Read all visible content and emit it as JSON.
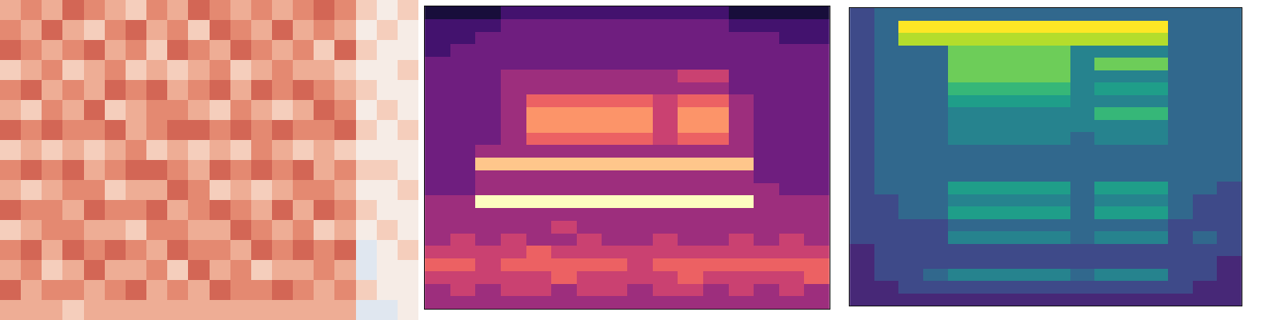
{
  "chart_data": [
    {
      "type": "heatmap",
      "color": "coolwarm",
      "zlim": [
        0,
        9
      ],
      "tick_labels": false,
      "cells": [
        [
          6,
          7,
          6,
          8,
          7,
          6,
          5,
          7,
          6,
          8,
          7,
          6,
          7,
          6,
          7,
          8,
          7,
          5,
          4,
          5
        ],
        [
          7,
          6,
          8,
          6,
          5,
          7,
          8,
          6,
          7,
          5,
          8,
          7,
          6,
          8,
          6,
          7,
          6,
          4,
          5,
          4
        ],
        [
          8,
          7,
          6,
          7,
          8,
          6,
          7,
          5,
          8,
          7,
          6,
          8,
          7,
          6,
          7,
          5,
          8,
          5,
          4,
          4
        ],
        [
          5,
          6,
          7,
          5,
          6,
          7,
          5,
          6,
          5,
          6,
          7,
          5,
          6,
          7,
          6,
          6,
          5,
          4,
          4,
          5
        ],
        [
          7,
          8,
          6,
          7,
          6,
          8,
          7,
          8,
          6,
          7,
          8,
          6,
          8,
          7,
          8,
          7,
          6,
          5,
          4,
          4
        ],
        [
          6,
          5,
          7,
          6,
          8,
          5,
          6,
          7,
          7,
          6,
          5,
          7,
          6,
          5,
          6,
          8,
          7,
          4,
          5,
          4
        ],
        [
          8,
          7,
          8,
          7,
          7,
          8,
          6,
          7,
          8,
          8,
          7,
          8,
          7,
          8,
          7,
          7,
          8,
          5,
          4,
          5
        ],
        [
          5,
          6,
          5,
          6,
          5,
          6,
          7,
          5,
          6,
          5,
          6,
          5,
          7,
          6,
          5,
          6,
          5,
          4,
          4,
          4
        ],
        [
          7,
          8,
          7,
          8,
          6,
          7,
          8,
          8,
          7,
          6,
          8,
          7,
          8,
          7,
          8,
          6,
          7,
          5,
          5,
          4
        ],
        [
          6,
          5,
          6,
          7,
          7,
          5,
          6,
          6,
          8,
          7,
          5,
          6,
          5,
          6,
          7,
          7,
          6,
          4,
          4,
          5
        ],
        [
          8,
          7,
          7,
          6,
          8,
          7,
          7,
          8,
          6,
          7,
          8,
          7,
          6,
          8,
          6,
          8,
          7,
          5,
          4,
          4
        ],
        [
          5,
          6,
          7,
          7,
          6,
          6,
          5,
          7,
          7,
          6,
          6,
          8,
          7,
          6,
          7,
          5,
          6,
          4,
          5,
          4
        ],
        [
          7,
          8,
          6,
          8,
          7,
          8,
          7,
          6,
          8,
          7,
          7,
          6,
          8,
          7,
          8,
          7,
          8,
          3,
          4,
          5
        ],
        [
          6,
          7,
          5,
          6,
          8,
          6,
          6,
          7,
          5,
          8,
          6,
          7,
          5,
          6,
          6,
          7,
          6,
          3,
          4,
          4
        ],
        [
          8,
          6,
          7,
          7,
          6,
          7,
          8,
          6,
          7,
          6,
          8,
          7,
          7,
          8,
          7,
          6,
          7,
          5,
          4,
          4
        ],
        [
          6,
          6,
          6,
          5,
          6,
          6,
          6,
          6,
          6,
          6,
          6,
          6,
          6,
          6,
          6,
          6,
          6,
          3,
          3,
          4
        ]
      ]
    },
    {
      "type": "heatmap",
      "color": "magma",
      "zlim": [
        0,
        9
      ],
      "tick_labels": false,
      "cells": [
        [
          1,
          1,
          1,
          2,
          2,
          2,
          2,
          2,
          2,
          2,
          2,
          2,
          1,
          1,
          1,
          1
        ],
        [
          2,
          2,
          2,
          3,
          3,
          3,
          3,
          3,
          3,
          3,
          3,
          3,
          2,
          2,
          2,
          2
        ],
        [
          2,
          2,
          3,
          3,
          3,
          3,
          3,
          3,
          3,
          3,
          3,
          3,
          3,
          3,
          2,
          2
        ],
        [
          2,
          3,
          3,
          3,
          3,
          3,
          3,
          3,
          3,
          3,
          3,
          3,
          3,
          3,
          3,
          3
        ],
        [
          3,
          3,
          3,
          3,
          3,
          3,
          3,
          3,
          3,
          3,
          3,
          3,
          3,
          3,
          3,
          3
        ],
        [
          3,
          3,
          3,
          4,
          4,
          4,
          4,
          4,
          4,
          4,
          5,
          5,
          3,
          3,
          3,
          3
        ],
        [
          3,
          3,
          3,
          4,
          4,
          4,
          4,
          4,
          4,
          4,
          4,
          4,
          3,
          3,
          3,
          3
        ],
        [
          3,
          3,
          3,
          4,
          6,
          6,
          6,
          6,
          6,
          5,
          6,
          6,
          4,
          3,
          3,
          3
        ],
        [
          3,
          3,
          3,
          4,
          7,
          7,
          7,
          7,
          7,
          5,
          7,
          7,
          4,
          3,
          3,
          3
        ],
        [
          3,
          3,
          3,
          4,
          7,
          7,
          7,
          7,
          7,
          5,
          7,
          7,
          4,
          3,
          3,
          3
        ],
        [
          3,
          3,
          3,
          4,
          6,
          6,
          6,
          6,
          6,
          5,
          6,
          6,
          4,
          3,
          3,
          3
        ],
        [
          3,
          3,
          4,
          4,
          4,
          4,
          4,
          4,
          4,
          4,
          4,
          4,
          4,
          3,
          3,
          3
        ],
        [
          3,
          3,
          8,
          8,
          8,
          8,
          8,
          8,
          8,
          8,
          8,
          8,
          8,
          3,
          3,
          3
        ],
        [
          3,
          3,
          4,
          4,
          4,
          4,
          4,
          4,
          4,
          4,
          4,
          4,
          4,
          3,
          3,
          3
        ],
        [
          3,
          3,
          4,
          4,
          4,
          4,
          4,
          4,
          4,
          4,
          4,
          4,
          4,
          4,
          3,
          3
        ],
        [
          4,
          4,
          9,
          9,
          9,
          9,
          9,
          9,
          9,
          9,
          9,
          9,
          9,
          4,
          4,
          4
        ],
        [
          4,
          4,
          4,
          4,
          4,
          4,
          4,
          4,
          4,
          4,
          4,
          4,
          4,
          4,
          4,
          4
        ],
        [
          4,
          4,
          4,
          4,
          4,
          5,
          4,
          4,
          4,
          4,
          4,
          4,
          4,
          4,
          4,
          4
        ],
        [
          4,
          5,
          4,
          5,
          4,
          4,
          5,
          4,
          4,
          5,
          4,
          4,
          5,
          4,
          5,
          4
        ],
        [
          5,
          5,
          5,
          5,
          6,
          5,
          5,
          5,
          5,
          5,
          5,
          5,
          5,
          5,
          5,
          5
        ],
        [
          6,
          6,
          5,
          6,
          6,
          6,
          6,
          6,
          5,
          6,
          6,
          6,
          6,
          6,
          6,
          6
        ],
        [
          5,
          5,
          5,
          5,
          5,
          6,
          5,
          5,
          5,
          5,
          6,
          5,
          5,
          5,
          5,
          6
        ],
        [
          4,
          5,
          4,
          5,
          5,
          4,
          5,
          5,
          4,
          5,
          5,
          4,
          5,
          4,
          5,
          4
        ],
        [
          4,
          4,
          4,
          4,
          4,
          4,
          4,
          4,
          4,
          4,
          4,
          4,
          4,
          4,
          4,
          4
        ]
      ]
    },
    {
      "type": "heatmap",
      "color": "viridis",
      "zlim": [
        0,
        9
      ],
      "tick_labels": false,
      "cells": [
        [
          2,
          3,
          3,
          3,
          3,
          3,
          3,
          3,
          3,
          3,
          3,
          3,
          3,
          3,
          3,
          3
        ],
        [
          2,
          3,
          9,
          9,
          9,
          9,
          9,
          9,
          9,
          9,
          9,
          9,
          9,
          3,
          3,
          3
        ],
        [
          2,
          3,
          8,
          8,
          8,
          8,
          8,
          8,
          8,
          8,
          8,
          8,
          8,
          3,
          3,
          3
        ],
        [
          2,
          3,
          3,
          3,
          7,
          7,
          7,
          7,
          7,
          4,
          4,
          4,
          4,
          3,
          3,
          3
        ],
        [
          2,
          3,
          3,
          3,
          7,
          7,
          7,
          7,
          7,
          4,
          7,
          7,
          7,
          3,
          3,
          3
        ],
        [
          2,
          3,
          3,
          3,
          7,
          7,
          7,
          7,
          7,
          4,
          4,
          4,
          4,
          3,
          3,
          3
        ],
        [
          2,
          3,
          3,
          3,
          6,
          6,
          6,
          6,
          6,
          4,
          5,
          5,
          5,
          3,
          3,
          3
        ],
        [
          2,
          3,
          3,
          3,
          5,
          5,
          5,
          5,
          5,
          4,
          4,
          4,
          4,
          3,
          3,
          3
        ],
        [
          2,
          3,
          3,
          3,
          4,
          4,
          4,
          4,
          4,
          4,
          6,
          6,
          6,
          3,
          3,
          3
        ],
        [
          2,
          3,
          3,
          3,
          4,
          4,
          4,
          4,
          4,
          4,
          4,
          4,
          4,
          3,
          3,
          3
        ],
        [
          2,
          3,
          3,
          3,
          4,
          4,
          4,
          4,
          4,
          3,
          4,
          4,
          4,
          3,
          3,
          3
        ],
        [
          2,
          3,
          3,
          3,
          3,
          3,
          3,
          3,
          3,
          3,
          3,
          3,
          3,
          3,
          3,
          3
        ],
        [
          2,
          3,
          3,
          3,
          3,
          3,
          3,
          3,
          3,
          3,
          3,
          3,
          3,
          3,
          3,
          3
        ],
        [
          2,
          3,
          3,
          3,
          3,
          3,
          3,
          3,
          3,
          3,
          3,
          3,
          3,
          3,
          3,
          3
        ],
        [
          2,
          3,
          3,
          3,
          5,
          5,
          5,
          5,
          5,
          3,
          5,
          5,
          5,
          3,
          3,
          2
        ],
        [
          2,
          2,
          3,
          3,
          4,
          4,
          4,
          4,
          4,
          3,
          4,
          4,
          4,
          3,
          2,
          2
        ],
        [
          2,
          2,
          3,
          3,
          5,
          5,
          5,
          5,
          5,
          3,
          5,
          5,
          5,
          3,
          2,
          2
        ],
        [
          2,
          2,
          2,
          2,
          3,
          3,
          3,
          3,
          3,
          3,
          3,
          3,
          3,
          2,
          2,
          2
        ],
        [
          2,
          2,
          2,
          2,
          4,
          4,
          4,
          4,
          4,
          3,
          4,
          4,
          4,
          2,
          3,
          2
        ],
        [
          1,
          2,
          2,
          2,
          2,
          2,
          2,
          2,
          2,
          2,
          2,
          2,
          2,
          2,
          2,
          2
        ],
        [
          1,
          2,
          2,
          2,
          2,
          2,
          2,
          2,
          2,
          2,
          2,
          2,
          2,
          2,
          2,
          1
        ],
        [
          1,
          2,
          2,
          3,
          4,
          4,
          4,
          4,
          4,
          3,
          4,
          4,
          4,
          2,
          2,
          1
        ],
        [
          1,
          1,
          2,
          2,
          2,
          2,
          2,
          2,
          2,
          2,
          2,
          2,
          2,
          2,
          1,
          1
        ],
        [
          1,
          1,
          1,
          1,
          1,
          1,
          1,
          1,
          1,
          1,
          1,
          1,
          1,
          1,
          1,
          1
        ]
      ]
    }
  ]
}
